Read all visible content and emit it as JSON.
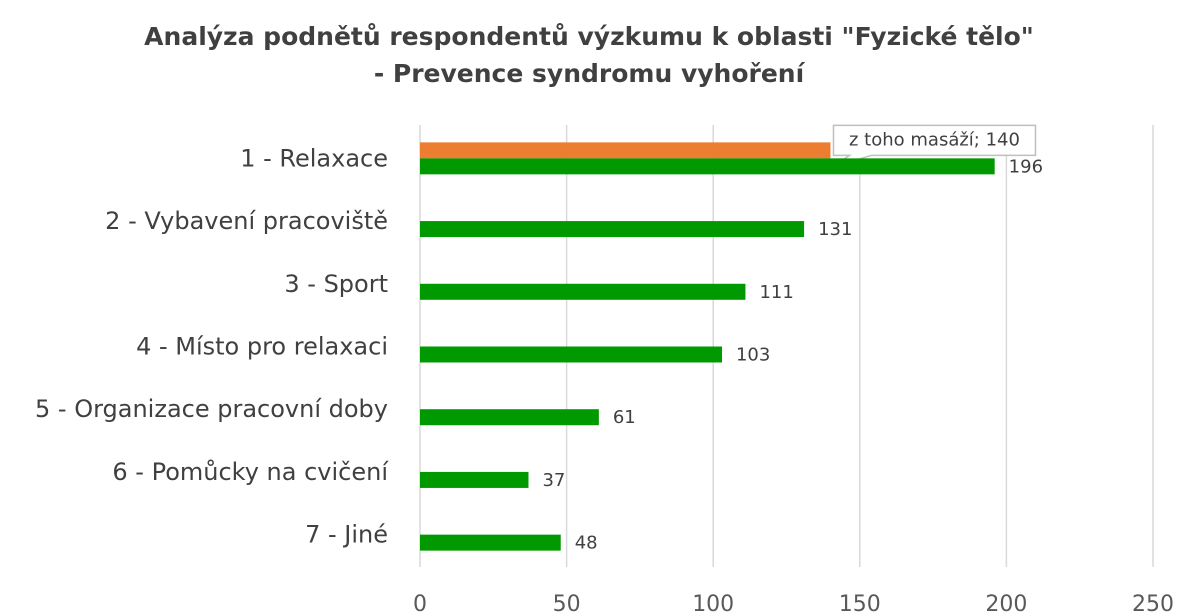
{
  "chart_data": {
    "type": "hbar",
    "title": [
      "Analýza podnětů respondentů výzkumu k oblasti \"Fyzické tělo\"",
      "- Prevence syndromu vyhoření"
    ],
    "categories": [
      "1 - Relaxace",
      "2 - Vybavení pracoviště",
      "3 - Sport",
      "4 - Místo pro relaxaci",
      "5 - Organizace pracovní doby",
      "6 - Pomůcky na cvičení",
      "7 - Jiné"
    ],
    "series": [
      {
        "color": "#ed7d31",
        "values": [
          140,
          null,
          null,
          null,
          null,
          null,
          null
        ],
        "value_labels": [
          "z toho masáží; 140",
          null,
          null,
          null,
          null,
          null,
          null
        ]
      },
      {
        "color": "#009900",
        "values": [
          196,
          131,
          111,
          103,
          61,
          37,
          48
        ]
      }
    ],
    "xlim": [
      0,
      250
    ],
    "xticks": [
      0,
      50,
      100,
      150,
      200,
      250
    ],
    "grid": true
  }
}
